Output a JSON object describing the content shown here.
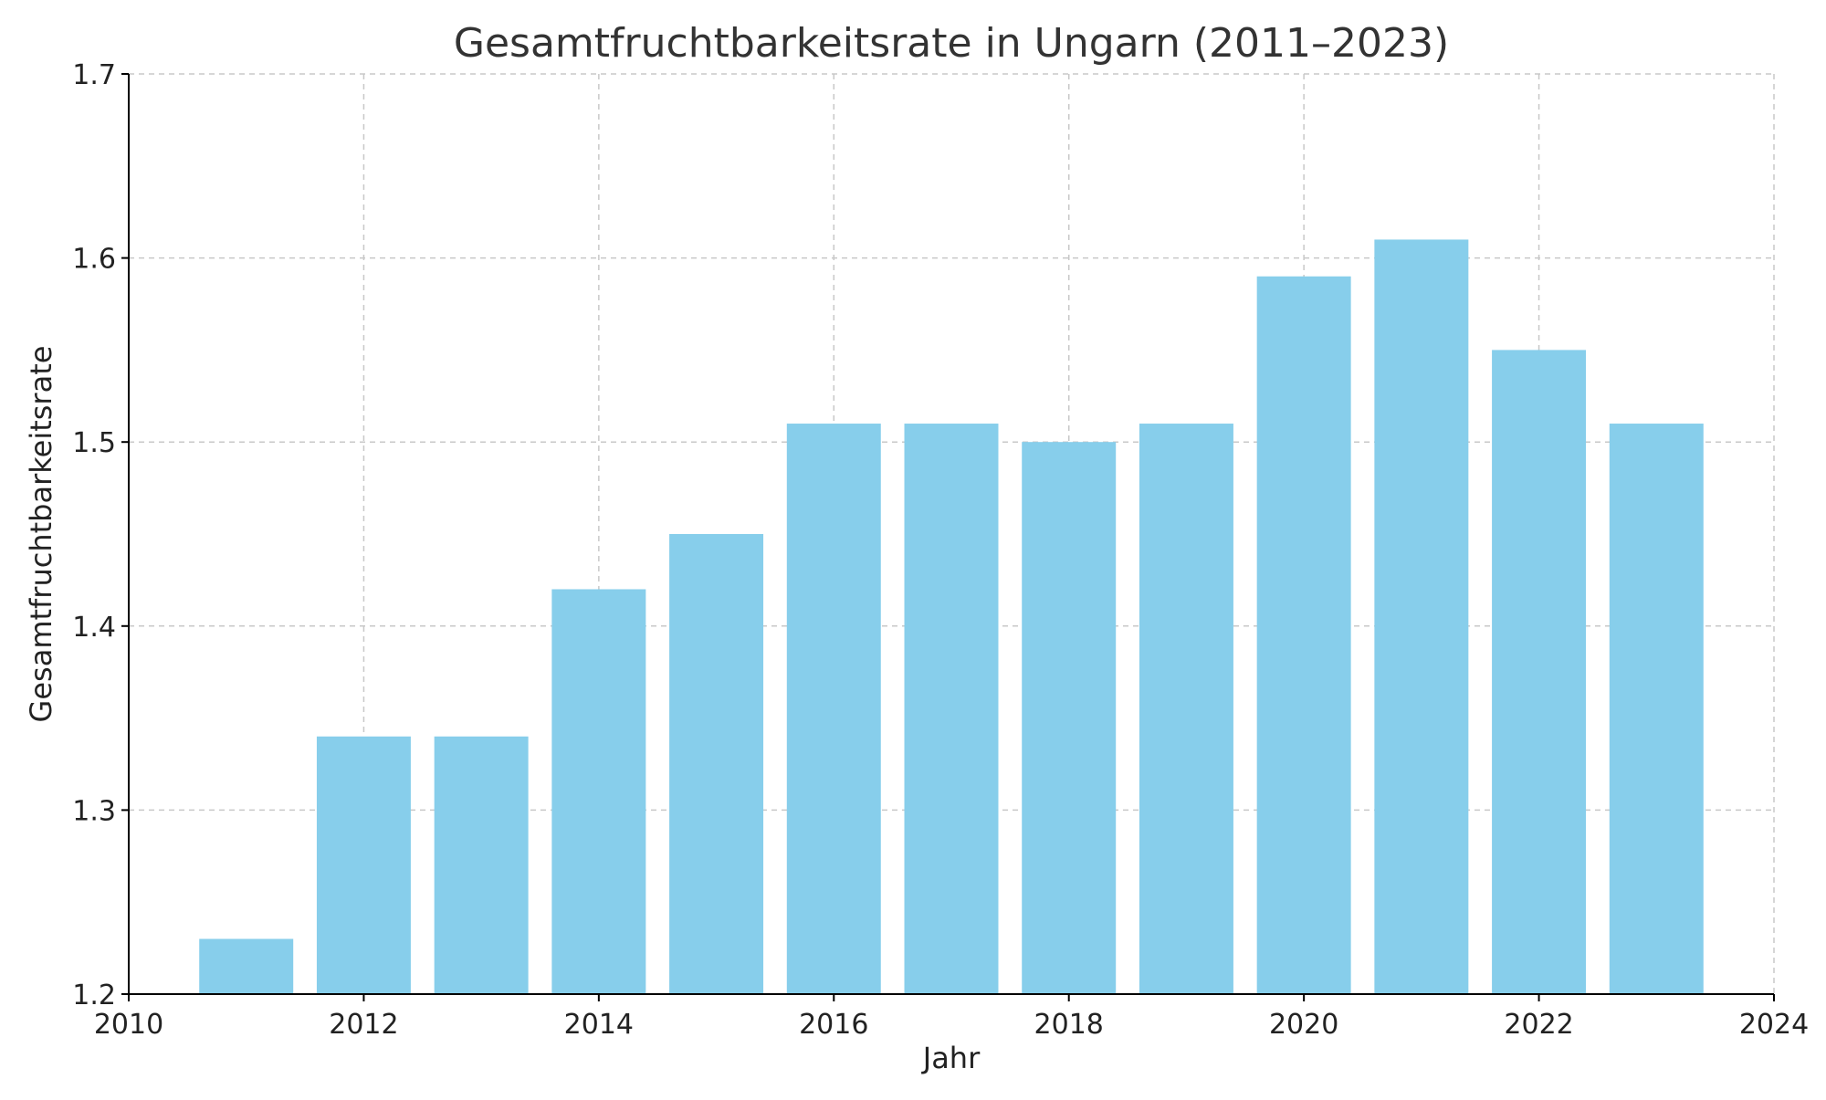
{
  "chart_data": {
    "type": "bar",
    "title": "Gesamtfruchtbarkeitsrate in Ungarn (2011–2023)",
    "xlabel": "Jahr",
    "ylabel": "Gesamtfruchtbarkeitsrate",
    "x": [
      2011,
      2012,
      2013,
      2014,
      2015,
      2016,
      2017,
      2018,
      2019,
      2020,
      2021,
      2022,
      2023
    ],
    "values": [
      1.23,
      1.34,
      1.34,
      1.42,
      1.45,
      1.51,
      1.51,
      1.5,
      1.51,
      1.59,
      1.61,
      1.55,
      1.51
    ],
    "xlim": [
      2010,
      2024
    ],
    "ylim": [
      1.2,
      1.7
    ],
    "xticks": [
      2010,
      2012,
      2014,
      2016,
      2018,
      2020,
      2022,
      2024
    ],
    "xtick_labels": [
      "2010",
      "2012",
      "2014",
      "2016",
      "2018",
      "2020",
      "2022",
      "2024"
    ],
    "yticks": [
      1.2,
      1.3,
      1.4,
      1.5,
      1.6,
      1.7
    ],
    "ytick_labels": [
      "1.2",
      "1.3",
      "1.4",
      "1.5",
      "1.6",
      "1.7"
    ],
    "bar_color": "#87CEEB",
    "grid": true,
    "legend": "none"
  }
}
